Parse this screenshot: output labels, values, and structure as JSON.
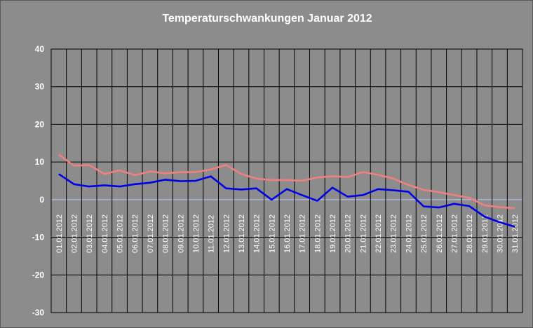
{
  "chart_data": {
    "type": "line",
    "title": "Temperaturschwankungen Januar 2012",
    "xlabel": "",
    "ylabel": "",
    "ylim": [
      -30,
      40
    ],
    "yticks": [
      40,
      30,
      20,
      10,
      0,
      -10,
      -20,
      -30
    ],
    "grid": true,
    "legend": "none",
    "categories": [
      "01.01.2012",
      "02.01.2012",
      "03.01.2012",
      "04.01.2012",
      "05.01.2012",
      "06.01.2012",
      "07.01.2012",
      "08.01.2012",
      "09.01.2012",
      "10.01.2012",
      "11.01.2012",
      "12.01.2012",
      "13.01.2012",
      "14.01.2012",
      "15.01.2012",
      "16.01.2012",
      "17.01.2012",
      "18.01.2012",
      "19.01.2012",
      "20.01.2012",
      "21.01.2012",
      "22.01.2012",
      "23.01.2012",
      "24.01.2012",
      "25.01.2012",
      "26.01.2012",
      "27.01.2012",
      "28.01.2012",
      "29.01.2012",
      "30.01.2012",
      "31.01.2012"
    ],
    "series": [
      {
        "color": "#f08080",
        "values": [
          12.0,
          9.0,
          9.2,
          6.8,
          7.8,
          6.5,
          7.5,
          7.0,
          7.3,
          7.3,
          8.0,
          9.2,
          6.8,
          5.6,
          5.2,
          5.2,
          5.0,
          5.9,
          6.2,
          6.0,
          7.3,
          6.6,
          5.6,
          3.9,
          2.6,
          2.0,
          1.2,
          0.5,
          -1.5,
          -2.0,
          -2.3
        ]
      },
      {
        "color": "#0000e6",
        "values": [
          6.8,
          4.1,
          3.5,
          3.8,
          3.5,
          4.1,
          4.5,
          5.3,
          4.9,
          5.0,
          6.2,
          3.0,
          2.7,
          3.0,
          0.0,
          2.8,
          1.2,
          -0.3,
          3.2,
          0.8,
          1.2,
          2.8,
          2.5,
          2.1,
          -1.8,
          -2.1,
          -1.1,
          -1.7,
          -4.5,
          -6.0,
          -7.2
        ]
      }
    ]
  }
}
